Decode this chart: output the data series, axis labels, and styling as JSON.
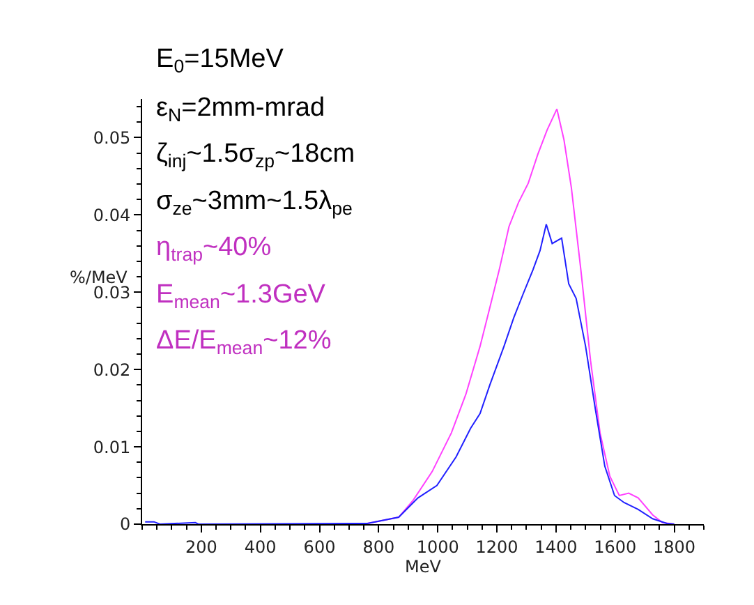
{
  "chart_data": {
    "type": "line",
    "xlabel": "MeV",
    "ylabel": "%/MeV",
    "xlim": [
      0,
      1900
    ],
    "xticks": [
      200,
      400,
      600,
      800,
      1000,
      1200,
      1400,
      1600,
      1800
    ],
    "ylim": [
      0,
      0.055
    ],
    "yticks": [
      0,
      0.01,
      0.02,
      0.03,
      0.04,
      0.05
    ],
    "marker": "none",
    "line_style": "solid",
    "series": [
      {
        "color": "#ff40ff",
        "x": [
          762,
          868,
          917,
          981,
          1046,
          1095,
          1143,
          1176,
          1208,
          1241,
          1273,
          1306,
          1338,
          1370,
          1403,
          1427,
          1452,
          1484,
          1517,
          1549,
          1582,
          1614,
          1646,
          1678,
          1727,
          1760,
          1800
        ],
        "values": [
          0.0001,
          0.0009,
          0.0031,
          0.0068,
          0.0118,
          0.0168,
          0.023,
          0.028,
          0.0329,
          0.0385,
          0.0416,
          0.0441,
          0.0478,
          0.051,
          0.0537,
          0.0497,
          0.0435,
          0.0329,
          0.0211,
          0.0118,
          0.0062,
          0.0037,
          0.004,
          0.0034,
          0.0012,
          0.0002,
          0
        ]
      },
      {
        "color": "#2020ff",
        "x": [
          10,
          40,
          60,
          180,
          190,
          762,
          868,
          933,
          997,
          1062,
          1111,
          1143,
          1176,
          1224,
          1257,
          1289,
          1322,
          1346,
          1367,
          1387,
          1419,
          1443,
          1468,
          1500,
          1533,
          1565,
          1598,
          1630,
          1678,
          1727,
          1775,
          1800
        ],
        "values": [
          0.0003,
          0.0003,
          0,
          0.0002,
          0,
          0.0001,
          0.0009,
          0.0034,
          0.005,
          0.0087,
          0.0124,
          0.0143,
          0.018,
          0.023,
          0.0267,
          0.0298,
          0.0329,
          0.0354,
          0.0388,
          0.0363,
          0.037,
          0.0311,
          0.0292,
          0.023,
          0.0149,
          0.0075,
          0.0037,
          0.0028,
          0.0019,
          0.0007,
          0.0001,
          0
        ]
      }
    ],
    "annotations": [
      "E$_{0}$=15MeV",
      "ε$_{N}$=2mm-mrad",
      "ζ$_{inj}$~1.5σ$_{zp}$~18cm",
      "σ$_{ze}$~3mm~1.5λ$_{pe}$",
      "η$_{trap}$~40%",
      "E$_{mean}$~1.3GeV",
      "ΔE/E$_{mean}$~12%"
    ]
  }
}
